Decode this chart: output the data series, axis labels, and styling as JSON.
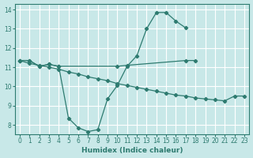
{
  "xlabel": "Humidex (Indice chaleur)",
  "bg_color": "#c8e8e8",
  "grid_color": "#b0d8d8",
  "line_color": "#2e7b70",
  "xlim": [
    -0.5,
    23.5
  ],
  "ylim": [
    7.5,
    14.3
  ],
  "xticks": [
    0,
    1,
    2,
    3,
    4,
    5,
    6,
    7,
    8,
    9,
    10,
    11,
    12,
    13,
    14,
    15,
    16,
    17,
    18,
    19,
    20,
    21,
    22,
    23
  ],
  "yticks": [
    8,
    9,
    10,
    11,
    12,
    13,
    14
  ],
  "dip_x": [
    0,
    1,
    2,
    3,
    4,
    5,
    6,
    7,
    8,
    9,
    10,
    11,
    12,
    13,
    14,
    15,
    16,
    17
  ],
  "dip_y": [
    11.35,
    11.35,
    11.05,
    11.15,
    11.05,
    8.35,
    7.85,
    7.65,
    7.75,
    9.35,
    10.05,
    11.05,
    11.6,
    13.0,
    13.85,
    13.85,
    13.4,
    13.05
  ],
  "diag_x": [
    0,
    1,
    2,
    3,
    4,
    5,
    6,
    7,
    8,
    9,
    10,
    11,
    12,
    13,
    14,
    15,
    16,
    17,
    18,
    19,
    20,
    21,
    22,
    23
  ],
  "diag_y": [
    11.35,
    11.2,
    11.1,
    11.0,
    10.9,
    10.75,
    10.65,
    10.5,
    10.4,
    10.3,
    10.15,
    10.05,
    9.95,
    9.85,
    9.75,
    9.65,
    9.55,
    9.5,
    9.4,
    9.35,
    9.3,
    9.25,
    9.5,
    9.5
  ],
  "flat_x": [
    0,
    1,
    2,
    3,
    4,
    10,
    11,
    17,
    18
  ],
  "flat_y": [
    11.35,
    11.35,
    11.05,
    11.15,
    11.05,
    11.05,
    11.1,
    11.35,
    11.35
  ]
}
